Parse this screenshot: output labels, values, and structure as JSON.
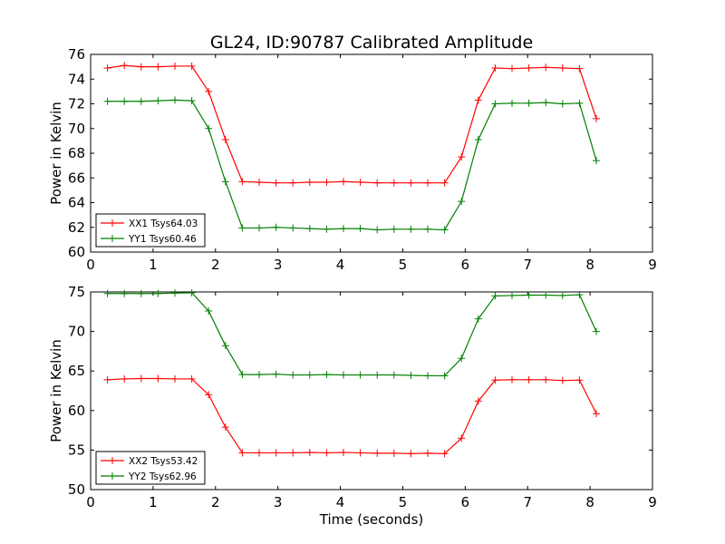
{
  "title": "GL24, ID:90787 Calibrated Amplitude",
  "xlabel": "Time (seconds)",
  "chart_data": [
    {
      "type": "line",
      "ylabel": "Power in Kelvin",
      "xlim": [
        0,
        9
      ],
      "ylim": [
        60,
        76
      ],
      "xticks": [
        0,
        1,
        2,
        3,
        4,
        5,
        6,
        7,
        8,
        9
      ],
      "yticks": [
        60,
        62,
        64,
        66,
        68,
        70,
        72,
        74,
        76
      ],
      "legend_position": "lower-left",
      "x": [
        0.27,
        0.54,
        0.81,
        1.08,
        1.35,
        1.62,
        1.89,
        2.16,
        2.43,
        2.7,
        2.97,
        3.24,
        3.51,
        3.78,
        4.05,
        4.32,
        4.59,
        4.86,
        5.13,
        5.4,
        5.67,
        5.94,
        6.21,
        6.48,
        6.75,
        7.02,
        7.29,
        7.56,
        7.83,
        8.1
      ],
      "series": [
        {
          "name": "XX1 Tsys64.03",
          "color": "#ff0000",
          "values": [
            74.9,
            75.1,
            75.0,
            75.0,
            75.05,
            75.05,
            73.0,
            69.1,
            65.7,
            65.65,
            65.6,
            65.6,
            65.65,
            65.65,
            65.7,
            65.65,
            65.6,
            65.6,
            65.6,
            65.6,
            65.6,
            67.7,
            72.3,
            74.9,
            74.85,
            74.9,
            74.95,
            74.9,
            74.85,
            70.8
          ]
        },
        {
          "name": "YY1 Tsys60.46",
          "color": "#008000",
          "values": [
            72.2,
            72.2,
            72.2,
            72.25,
            72.3,
            72.25,
            70.0,
            65.7,
            61.95,
            61.95,
            62.0,
            61.95,
            61.9,
            61.85,
            61.9,
            61.9,
            61.8,
            61.85,
            61.85,
            61.85,
            61.8,
            64.1,
            69.1,
            72.0,
            72.05,
            72.05,
            72.1,
            72.0,
            72.05,
            67.4
          ]
        }
      ]
    },
    {
      "type": "line",
      "ylabel": "Power in Kelvin",
      "xlim": [
        0,
        9
      ],
      "ylim": [
        50,
        75
      ],
      "xticks": [
        0,
        1,
        2,
        3,
        4,
        5,
        6,
        7,
        8,
        9
      ],
      "yticks": [
        50,
        55,
        60,
        65,
        70,
        75
      ],
      "legend_position": "lower-left",
      "x": [
        0.27,
        0.54,
        0.81,
        1.08,
        1.35,
        1.62,
        1.89,
        2.16,
        2.43,
        2.7,
        2.97,
        3.24,
        3.51,
        3.78,
        4.05,
        4.32,
        4.59,
        4.86,
        5.13,
        5.4,
        5.67,
        5.94,
        6.21,
        6.48,
        6.75,
        7.02,
        7.29,
        7.56,
        7.83,
        8.1
      ],
      "series": [
        {
          "name": "XX2 Tsys53.42",
          "color": "#ff0000",
          "values": [
            63.9,
            64.0,
            64.05,
            64.05,
            64.0,
            64.0,
            62.0,
            57.9,
            54.65,
            54.65,
            54.65,
            54.65,
            54.7,
            54.65,
            54.7,
            54.65,
            54.6,
            54.6,
            54.55,
            54.6,
            54.55,
            56.5,
            61.2,
            63.85,
            63.9,
            63.9,
            63.9,
            63.8,
            63.85,
            59.6
          ]
        },
        {
          "name": "YY2 Tsys62.96",
          "color": "#008000",
          "values": [
            74.8,
            74.8,
            74.8,
            74.8,
            74.85,
            74.9,
            72.6,
            68.2,
            64.55,
            64.55,
            64.6,
            64.5,
            64.5,
            64.55,
            64.5,
            64.5,
            64.5,
            64.5,
            64.45,
            64.4,
            64.4,
            66.6,
            71.6,
            74.5,
            74.55,
            74.6,
            74.6,
            74.55,
            74.65,
            70.0
          ]
        }
      ]
    }
  ]
}
